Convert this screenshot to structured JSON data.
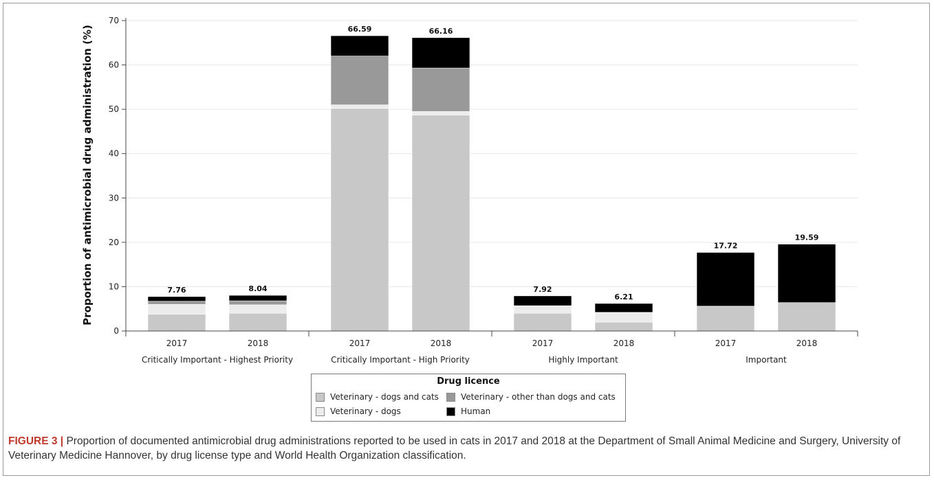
{
  "chart_data": {
    "type": "bar",
    "stacked": true,
    "ylabel": "Proportion of antimicrobial drug administration (%)",
    "ylim": [
      0,
      70
    ],
    "yticks": [
      0,
      10,
      20,
      30,
      40,
      50,
      60,
      70
    ],
    "grid": true,
    "groups": [
      "Critically Important - Highest Priority",
      "Critically Important - High Priority",
      "Highly Important",
      "Important"
    ],
    "categories": [
      "2017",
      "2018",
      "2017",
      "2018",
      "2017",
      "2018",
      "2017",
      "2018"
    ],
    "totals": [
      "7.76",
      "8.04",
      "66.59",
      "66.16",
      "7.92",
      "6.21",
      "17.72",
      "19.59"
    ],
    "series": [
      {
        "name": "Veterinary - dogs and cats",
        "color": "#c8c8c8",
        "values": [
          3.8,
          4.0,
          50.2,
          48.7,
          4.0,
          2.0,
          5.6,
          6.4
        ]
      },
      {
        "name": "Veterinary - dogs",
        "color": "#ececec",
        "values": [
          2.2,
          1.9,
          0.8,
          0.8,
          1.7,
          2.1,
          0.0,
          0.0
        ]
      },
      {
        "name": "Veterinary - other than dogs and cats",
        "color": "#999999",
        "values": [
          0.7,
          0.9,
          11.0,
          9.8,
          0.0,
          0.1,
          0.0,
          0.0
        ]
      },
      {
        "name": "Human",
        "color": "#000000",
        "values": [
          1.06,
          1.24,
          4.59,
          6.86,
          2.22,
          2.01,
          12.12,
          13.19
        ]
      }
    ],
    "legend": {
      "title": "Drug licence",
      "placement": "bottom-center"
    }
  },
  "caption": {
    "figure_label": "FIGURE 3 |",
    "text": "Proportion of documented antimicrobial drug administrations reported to be used in cats in 2017 and 2018 at the Department of Small Animal Medicine and Surgery, University of Veterinary Medicine Hannover, by drug license type and World Health Organization classification."
  }
}
